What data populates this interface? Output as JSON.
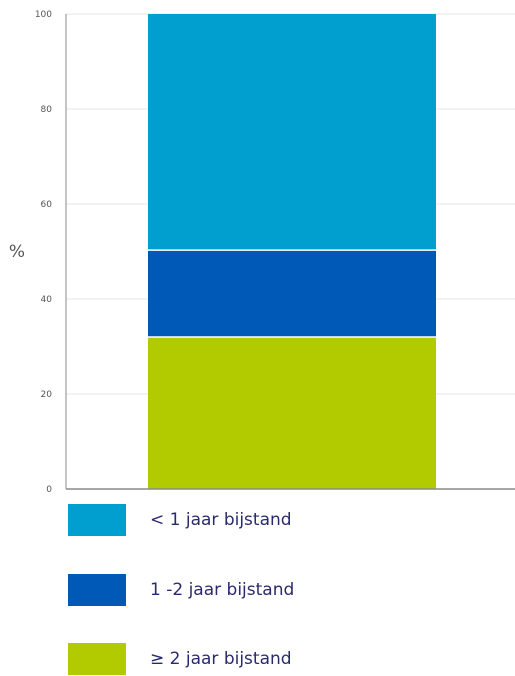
{
  "chart_data": {
    "type": "bar",
    "stacked": true,
    "categories": [
      ""
    ],
    "series": [
      {
        "name": "≥ 2 jaar bijstand",
        "values": [
          32
        ],
        "color": "#b2cb00"
      },
      {
        "name": "1 -2 jaar bijstand",
        "values": [
          18.3
        ],
        "color": "#0058b7"
      },
      {
        "name": "< 1 jaar bijstand",
        "values": [
          49.7
        ],
        "color": "#009fd0"
      }
    ],
    "title": "",
    "xlabel": "",
    "ylabel": "%",
    "ylim": [
      0,
      100
    ],
    "yticks": [
      0,
      20,
      40,
      60,
      80,
      100
    ],
    "ytick_labels": [
      "0",
      "20",
      "40",
      "60",
      "80",
      "100"
    ],
    "grid": true,
    "legend_placement": "bottom",
    "legend_order": [
      "< 1 jaar bijstand",
      "1 -2 jaar bijstand",
      "≥ 2 jaar bijstand"
    ]
  }
}
